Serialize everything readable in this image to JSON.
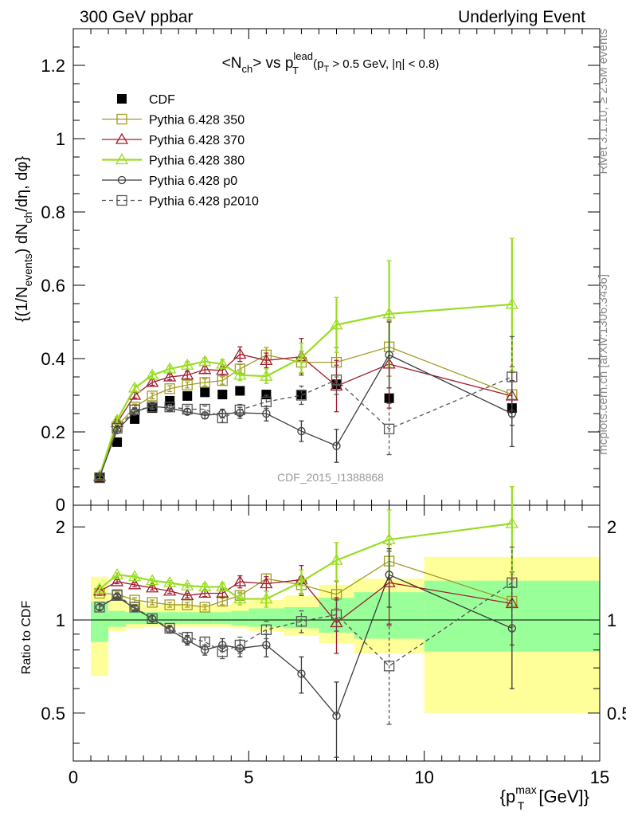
{
  "header": {
    "left": "300 GeV ppbar",
    "right": "Underlying Event"
  },
  "side_labels": {
    "rivet": "Rivet 3.1.10, ≥ 2.5M events",
    "mcplots": "mcplots.cern.ch [arXiv:1306.3436]"
  },
  "chart_data": [
    {
      "type": "line",
      "title": "<N_ch> vs p_T^lead (p_T > 0.5 GeV, |η| < 0.8)",
      "ylabel": "{(1/N_events) dN_ch/dη, dφ}",
      "watermark": "CDF_2015_I1388868",
      "xlim": [
        0,
        15
      ],
      "ylim": [
        0,
        1.3
      ],
      "yticks": [
        0.2,
        0.4,
        0.6,
        0.8,
        1,
        1.2
      ],
      "ytick_labels": [
        "0.2",
        "0.4",
        "0.6",
        "0.8",
        "1",
        "1.2"
      ],
      "bottom_tick_label": "0",
      "legend_position": "top-left",
      "series": [
        {
          "name": "CDF",
          "color": "#000000",
          "marker": "filled-square",
          "x": [
            0.75,
            1.25,
            1.75,
            2.25,
            2.75,
            3.25,
            3.75,
            4.25,
            4.75,
            5.5,
            6.5,
            7.5,
            9.0,
            12.5
          ],
          "y": [
            0.075,
            0.172,
            0.235,
            0.265,
            0.285,
            0.298,
            0.308,
            0.302,
            0.312,
            0.302,
            0.302,
            0.33,
            0.292,
            0.265
          ]
        },
        {
          "name": "Pythia 6.428 350",
          "color": "#a09c24",
          "marker": "open-square",
          "x": [
            0.75,
            1.25,
            1.75,
            2.25,
            2.75,
            3.25,
            3.75,
            4.25,
            4.75,
            5.5,
            6.5,
            7.5,
            9.0,
            12.5
          ],
          "y": [
            0.075,
            0.215,
            0.268,
            0.298,
            0.318,
            0.328,
            0.335,
            0.34,
            0.372,
            0.41,
            0.39,
            0.39,
            0.432,
            0.302
          ],
          "err": [
            0.008,
            0.01,
            0.008,
            0.008,
            0.008,
            0.008,
            0.01,
            0.01,
            0.012,
            0.02,
            0.03,
            0.04,
            0.08,
            0.06
          ]
        },
        {
          "name": "Pythia 6.428 370",
          "color": "#a01e2e",
          "marker": "open-triangle",
          "x": [
            0.75,
            1.25,
            1.75,
            2.25,
            2.75,
            3.25,
            3.75,
            4.25,
            4.75,
            5.5,
            6.5,
            7.5,
            9.0,
            12.5
          ],
          "y": [
            0.078,
            0.225,
            0.3,
            0.335,
            0.35,
            0.355,
            0.37,
            0.368,
            0.412,
            0.395,
            0.405,
            0.325,
            0.385,
            0.298
          ],
          "err": [
            0.008,
            0.01,
            0.008,
            0.008,
            0.008,
            0.01,
            0.01,
            0.012,
            0.02,
            0.02,
            0.05,
            0.07,
            0.12,
            0.08
          ]
        },
        {
          "name": "Pythia 6.428 380",
          "color": "#99dd22",
          "marker": "open-triangle",
          "x": [
            0.75,
            1.25,
            1.75,
            2.25,
            2.75,
            3.25,
            3.75,
            4.25,
            4.75,
            5.5,
            6.5,
            7.5,
            9.0,
            12.5
          ],
          "y": [
            0.08,
            0.232,
            0.32,
            0.355,
            0.372,
            0.382,
            0.392,
            0.385,
            0.355,
            0.352,
            0.402,
            0.492,
            0.522,
            0.548
          ],
          "err": [
            0.008,
            0.01,
            0.008,
            0.008,
            0.008,
            0.01,
            0.01,
            0.012,
            0.015,
            0.02,
            0.04,
            0.075,
            0.145,
            0.18
          ]
        },
        {
          "name": "Pythia 6.428 p0",
          "color": "#3c3c3c",
          "marker": "open-circle",
          "x": [
            0.75,
            1.25,
            1.75,
            2.25,
            2.75,
            3.25,
            3.75,
            4.25,
            4.75,
            5.5,
            6.5,
            7.5,
            9.0,
            12.5
          ],
          "y": [
            0.077,
            0.205,
            0.255,
            0.27,
            0.265,
            0.255,
            0.245,
            0.25,
            0.252,
            0.25,
            0.202,
            0.162,
            0.41,
            0.25
          ],
          "err": [
            0.006,
            0.008,
            0.006,
            0.006,
            0.007,
            0.008,
            0.009,
            0.012,
            0.015,
            0.02,
            0.028,
            0.045,
            0.09,
            0.09
          ]
        },
        {
          "name": "Pythia 6.428 p2010",
          "color": "#555555",
          "marker": "open-square",
          "dashed": true,
          "x": [
            0.75,
            1.25,
            1.75,
            2.25,
            2.75,
            3.25,
            3.75,
            4.25,
            4.75,
            5.5,
            6.5,
            7.5,
            9.0,
            12.5
          ],
          "y": [
            0.075,
            0.21,
            0.26,
            0.268,
            0.268,
            0.262,
            0.262,
            0.238,
            0.26,
            0.282,
            0.3,
            0.342,
            0.208,
            0.35
          ],
          "err": [
            0.006,
            0.008,
            0.006,
            0.006,
            0.007,
            0.008,
            0.009,
            0.012,
            0.015,
            0.018,
            0.025,
            0.04,
            0.07,
            0.11
          ]
        }
      ]
    },
    {
      "type": "line",
      "ylabel": "Ratio to CDF",
      "xlabel": "{p_T^max [GeV]}",
      "xlim": [
        0,
        15
      ],
      "ylim": [
        0.35,
        2.35
      ],
      "xticks": [
        0,
        5,
        10,
        15
      ],
      "xtick_labels": [
        "0",
        "5",
        "10",
        "15"
      ],
      "yticks": [
        0.5,
        1,
        2
      ],
      "ytick_labels": [
        "0.5",
        "1",
        "2"
      ],
      "reference_line": 1,
      "bands": {
        "bin_edges": [
          0.5,
          1,
          1.5,
          2,
          2.5,
          3,
          3.5,
          4,
          4.5,
          5,
          6,
          7,
          8,
          10,
          15
        ],
        "yellow_low": [
          0.66,
          0.92,
          0.94,
          0.95,
          0.95,
          0.95,
          0.95,
          0.95,
          0.94,
          0.92,
          0.89,
          0.84,
          0.78,
          0.5
        ],
        "yellow_high": [
          1.38,
          1.2,
          1.14,
          1.12,
          1.12,
          1.12,
          1.12,
          1.12,
          1.14,
          1.16,
          1.2,
          1.3,
          1.36,
          1.6
        ],
        "green_low": [
          0.85,
          0.95,
          0.97,
          0.97,
          0.97,
          0.97,
          0.97,
          0.97,
          0.96,
          0.95,
          0.94,
          0.91,
          0.87,
          0.79
        ],
        "green_high": [
          1.15,
          1.07,
          1.06,
          1.06,
          1.06,
          1.06,
          1.06,
          1.06,
          1.07,
          1.09,
          1.1,
          1.18,
          1.23,
          1.34
        ]
      },
      "series": [
        {
          "name": "Pythia 6.428 350",
          "color": "#a09c24",
          "marker": "open-square",
          "x": [
            0.75,
            1.25,
            1.75,
            2.25,
            2.75,
            3.25,
            3.75,
            4.25,
            4.75,
            5.5,
            6.5,
            7.5,
            9.0,
            12.5
          ],
          "y": [
            1.22,
            1.21,
            1.16,
            1.14,
            1.12,
            1.12,
            1.1,
            1.15,
            1.2,
            1.36,
            1.3,
            1.21,
            1.55,
            1.15
          ],
          "err": [
            0.02,
            0.02,
            0.02,
            0.02,
            0.02,
            0.02,
            0.02,
            0.03,
            0.03,
            0.05,
            0.08,
            0.12,
            0.2,
            0.2
          ]
        },
        {
          "name": "Pythia 6.428 370",
          "color": "#a01e2e",
          "marker": "open-triangle",
          "x": [
            0.75,
            1.25,
            1.75,
            2.25,
            2.75,
            3.25,
            3.75,
            4.25,
            4.75,
            5.5,
            6.5,
            7.5,
            9.0,
            12.5
          ],
          "y": [
            1.24,
            1.33,
            1.3,
            1.27,
            1.24,
            1.2,
            1.22,
            1.22,
            1.33,
            1.31,
            1.35,
            0.98,
            1.32,
            1.13
          ],
          "err": [
            0.02,
            0.02,
            0.02,
            0.02,
            0.02,
            0.02,
            0.03,
            0.04,
            0.06,
            0.07,
            0.15,
            0.2,
            0.35,
            0.3
          ]
        },
        {
          "name": "Pythia 6.428 380",
          "color": "#99dd22",
          "marker": "open-triangle",
          "x": [
            0.75,
            1.25,
            1.75,
            2.25,
            2.75,
            3.25,
            3.75,
            4.25,
            4.75,
            5.5,
            6.5,
            7.5,
            9.0,
            12.5
          ],
          "y": [
            1.26,
            1.4,
            1.38,
            1.34,
            1.32,
            1.29,
            1.28,
            1.28,
            1.17,
            1.17,
            1.33,
            1.56,
            1.82,
            2.05
          ],
          "err": [
            0.02,
            0.02,
            0.02,
            0.02,
            0.02,
            0.02,
            0.03,
            0.04,
            0.05,
            0.07,
            0.12,
            0.22,
            0.45,
            0.65
          ]
        },
        {
          "name": "Pythia 6.428 p0",
          "color": "#3c3c3c",
          "marker": "open-circle",
          "x": [
            0.75,
            1.25,
            1.75,
            2.25,
            2.75,
            3.25,
            3.75,
            4.25,
            4.75,
            5.5,
            6.5,
            7.5,
            9.0,
            12.5
          ],
          "y": [
            1.1,
            1.19,
            1.09,
            1.01,
            0.93,
            0.86,
            0.8,
            0.83,
            0.81,
            0.83,
            0.67,
            0.49,
            1.4,
            0.94
          ],
          "err": [
            0.02,
            0.02,
            0.02,
            0.02,
            0.02,
            0.03,
            0.03,
            0.04,
            0.05,
            0.07,
            0.09,
            0.14,
            0.3,
            0.34
          ]
        },
        {
          "name": "Pythia 6.428 p2010",
          "color": "#555555",
          "marker": "open-square",
          "dashed": true,
          "x": [
            0.75,
            1.25,
            1.75,
            2.25,
            2.75,
            3.25,
            3.75,
            4.25,
            4.75,
            5.5,
            6.5,
            7.5,
            9.0,
            12.5
          ],
          "y": [
            1.1,
            1.2,
            1.1,
            1.01,
            0.94,
            0.88,
            0.85,
            0.79,
            0.83,
            0.93,
            0.99,
            1.04,
            0.71,
            1.32
          ],
          "err": [
            0.02,
            0.02,
            0.02,
            0.02,
            0.02,
            0.03,
            0.03,
            0.04,
            0.05,
            0.06,
            0.08,
            0.12,
            0.25,
            0.4
          ]
        }
      ]
    }
  ]
}
